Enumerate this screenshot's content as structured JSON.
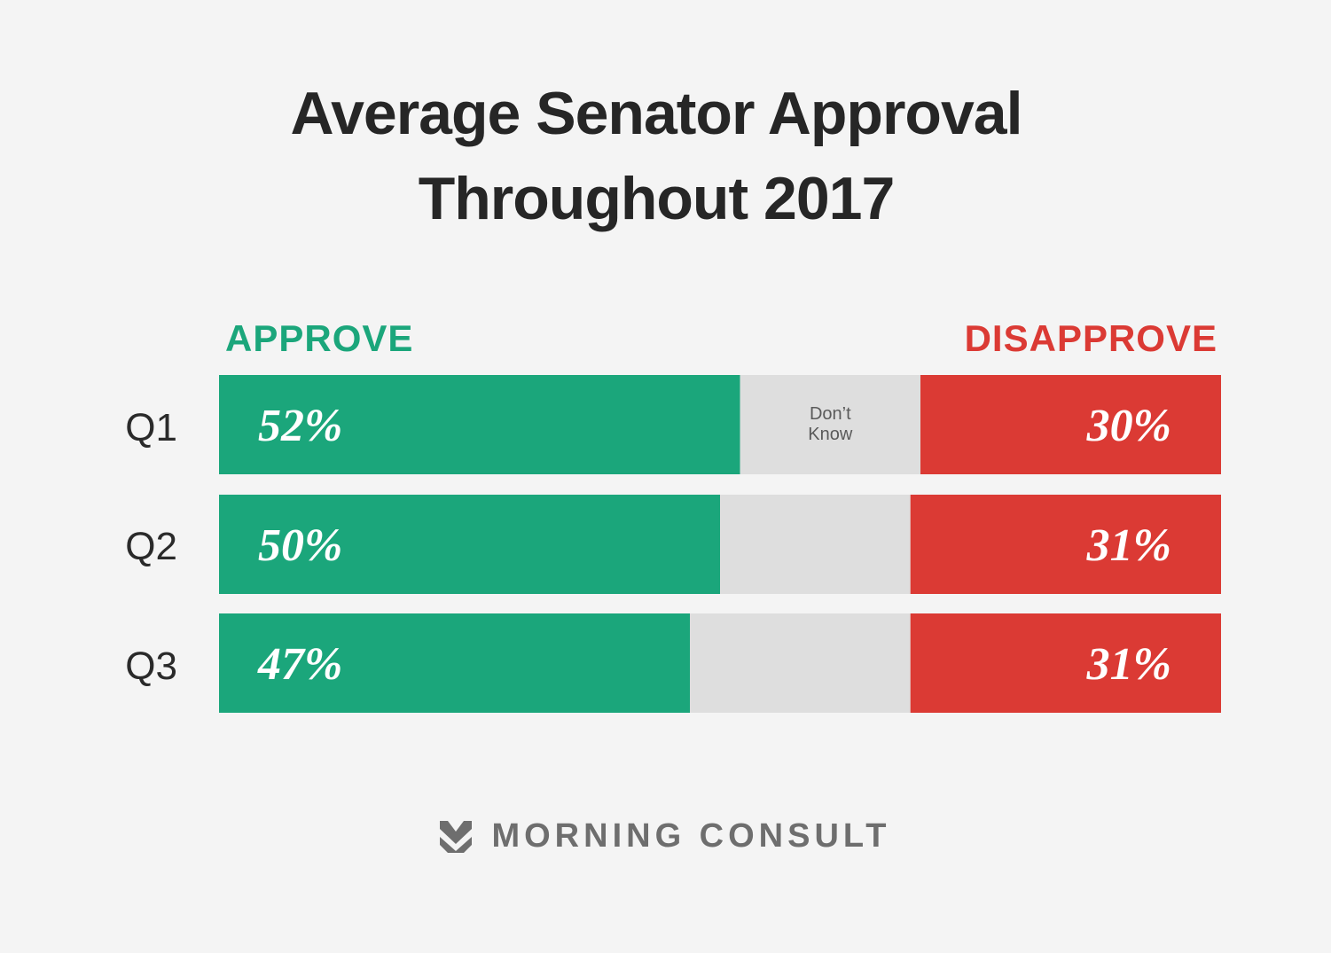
{
  "chart_data": {
    "type": "bar",
    "title": [
      "Average Senator Approval",
      "Throughout 2017"
    ],
    "categories": [
      "Q1",
      "Q2",
      "Q3"
    ],
    "series": [
      {
        "name": "APPROVE",
        "values": [
          52,
          50,
          47
        ],
        "labels": [
          "52%",
          "50%",
          "47%"
        ]
      },
      {
        "name": "Don’t Know",
        "values": [
          18,
          19,
          22
        ]
      },
      {
        "name": "DISAPPROVE",
        "values": [
          30,
          31,
          31
        ],
        "labels": [
          "30%",
          "31%",
          "31%"
        ]
      }
    ],
    "dont_know_label": [
      "Don’t",
      "Know"
    ],
    "stacked": true,
    "orientation": "horizontal",
    "colors": {
      "approve": "#1ba67b",
      "dont_know": "#dedede",
      "disapprove": "#db3a34"
    }
  },
  "footer": {
    "brand": "MORNING CONSULT",
    "logo_icon": "morning-consult-chevron-icon",
    "logo_color": "#6e6e6e"
  }
}
